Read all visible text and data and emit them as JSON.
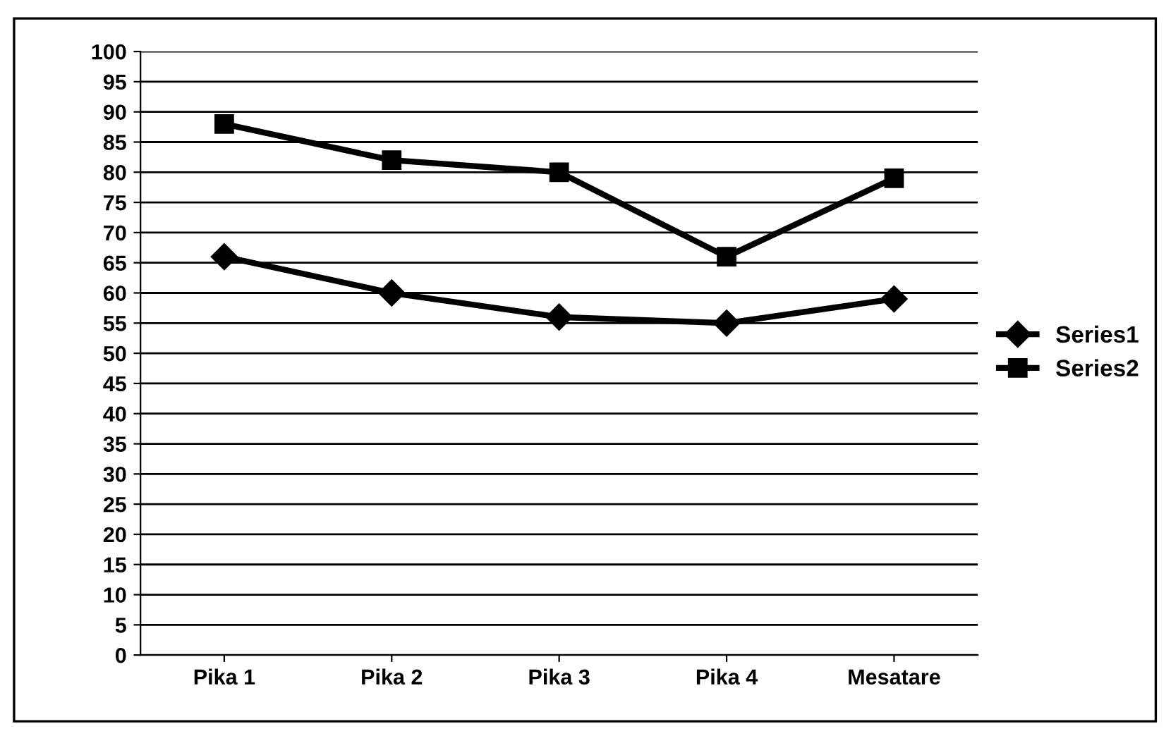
{
  "chart_data": {
    "type": "line",
    "categories": [
      "Pika 1",
      "Pika 2",
      "Pika 3",
      "Pika 4",
      "Mesatare"
    ],
    "series": [
      {
        "name": "Series1",
        "color": "#000000",
        "marker": "diamond",
        "values": [
          66,
          60,
          56,
          55,
          59
        ]
      },
      {
        "name": "Series2",
        "color": "#000000",
        "marker": "square",
        "values": [
          88,
          82,
          80,
          66,
          79
        ]
      }
    ],
    "ylim": [
      0,
      100
    ],
    "yticks": [
      0,
      5,
      10,
      15,
      20,
      25,
      30,
      35,
      40,
      45,
      50,
      55,
      60,
      65,
      70,
      75,
      80,
      85,
      90,
      95,
      100
    ],
    "grid": "y",
    "legend": "right",
    "line_style": "solid"
  }
}
